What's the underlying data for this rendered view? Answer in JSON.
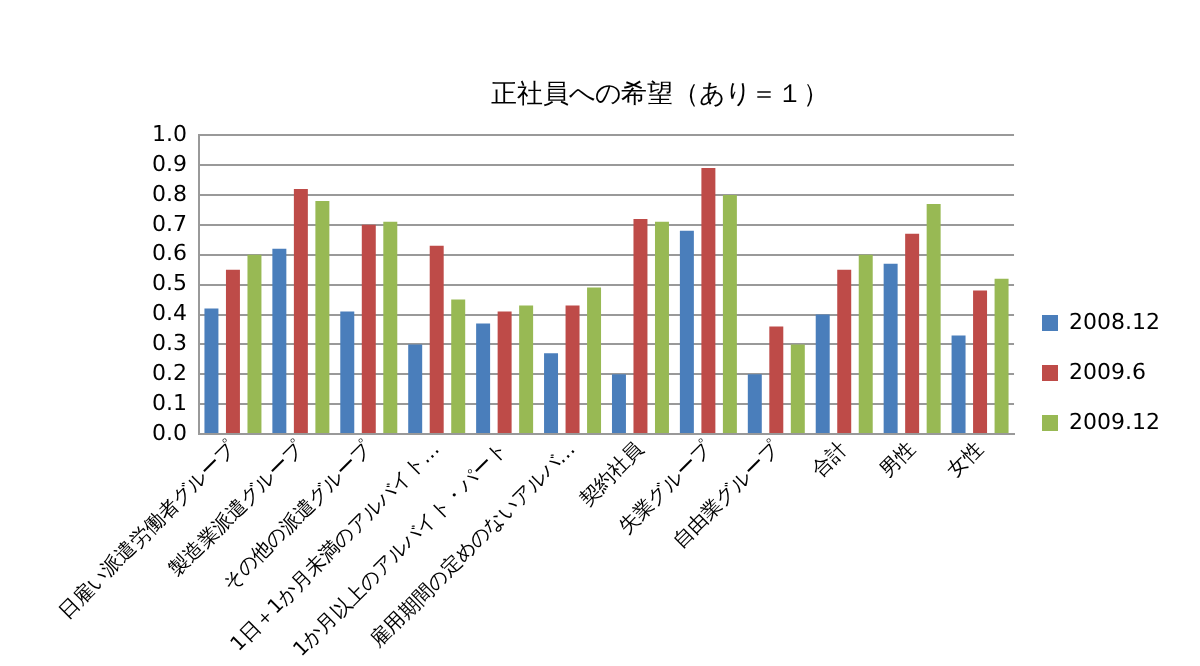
{
  "chart_data": {
    "type": "bar",
    "title": "正社員への希望（あり＝１）",
    "categories": [
      "日雇い派遣労働者グループ",
      "製造業派遣グループ",
      "その他の派遣グループ",
      "1日＋1か月未満のアルバイト…",
      "1か月以上のアルバイト・パート",
      "雇用期間の定めのないアルバ…",
      "契約社員",
      "失業グループ",
      "自由業グループ",
      "合計",
      "男性",
      "女性"
    ],
    "series": [
      {
        "name": "2008.12",
        "color": "#4a7ebb",
        "values": [
          0.42,
          0.62,
          0.41,
          0.3,
          0.37,
          0.27,
          0.2,
          0.68,
          0.2,
          0.4,
          0.57,
          0.33
        ]
      },
      {
        "name": "2009.6",
        "color": "#be4b48",
        "values": [
          0.55,
          0.82,
          0.7,
          0.63,
          0.41,
          0.43,
          0.72,
          0.89,
          0.36,
          0.55,
          0.67,
          0.48
        ]
      },
      {
        "name": "2009.12",
        "color": "#98b954",
        "values": [
          0.6,
          0.78,
          0.71,
          0.45,
          0.43,
          0.49,
          0.71,
          0.8,
          0.3,
          0.6,
          0.77,
          0.52
        ]
      }
    ],
    "ylim": [
      0,
      1
    ],
    "yticks": [
      {
        "value": 0,
        "label": "0.0"
      },
      {
        "value": 0.1,
        "label": "0.1"
      },
      {
        "value": 0.2,
        "label": "0.2"
      },
      {
        "value": 0.3,
        "label": "0.3"
      },
      {
        "value": 0.4,
        "label": "0.4"
      },
      {
        "value": 0.5,
        "label": "0.5"
      },
      {
        "value": 0.6,
        "label": "0.6"
      },
      {
        "value": 0.7,
        "label": "0.7"
      },
      {
        "value": 0.8,
        "label": "0.8"
      },
      {
        "value": 0.9,
        "label": "0.9"
      },
      {
        "value": 1,
        "label": "1.0"
      }
    ],
    "grid": "y",
    "legend": "right"
  }
}
